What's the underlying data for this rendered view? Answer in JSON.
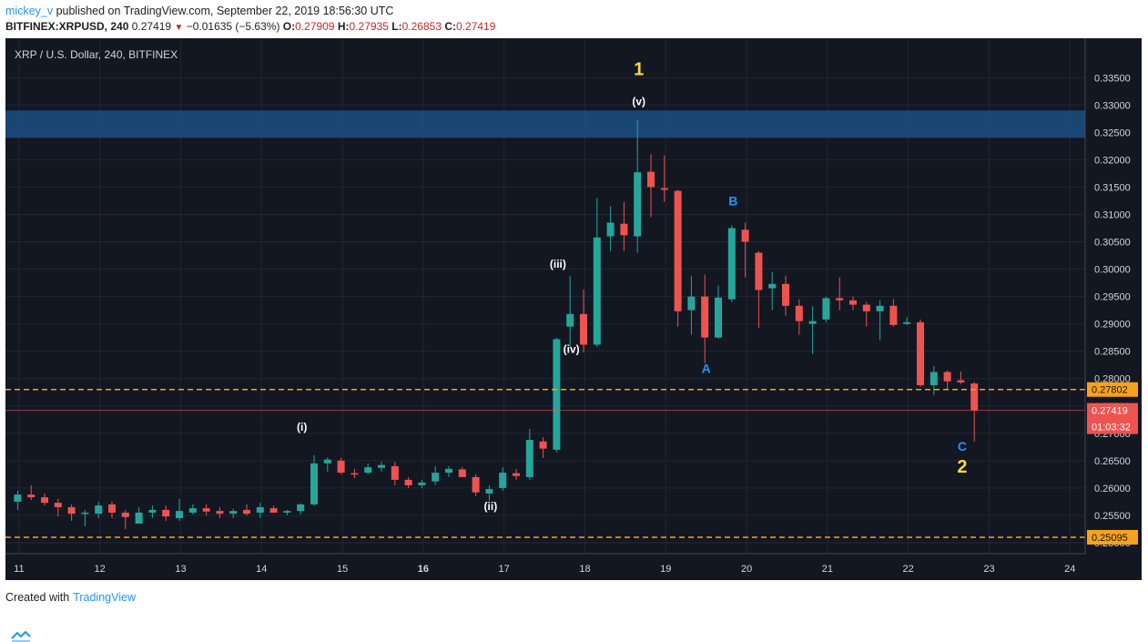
{
  "header": {
    "user": "mickey_v",
    "published": " published on TradingView.com, September 22, 2019 18:56:30 UTC",
    "symbol_line": "BITFINEX:XRPUSD, 240",
    "last": "0.27419",
    "change": "−0.01635 (−5.63%)",
    "o_label": "O:",
    "o_value": "0.27909",
    "h_label": "H:",
    "h_value": "0.27935",
    "l_label": "L:",
    "l_value": "0.26853",
    "c_label": "C:",
    "c_value": "0.27419"
  },
  "footer": {
    "created": "Created with",
    "brand": "TradingView"
  },
  "colors": {
    "bg": "#131722",
    "up": "#26a69a",
    "down": "#ef5350",
    "grid": "#232632",
    "text": "#d1d4dc",
    "dash": "#f7a21b",
    "zone": "#1c4f82",
    "wave_yellow": "#ffd740",
    "wave_blue": "#2196f3",
    "white": "#ffffff"
  },
  "chart_data": {
    "type": "candlestick",
    "title": "XRP / U.S. Dollar, 240, BITFINEX",
    "ylim": [
      0.248,
      0.3422
    ],
    "y_ticks": [
      "0.33500",
      "0.33000",
      "0.32500",
      "0.32000",
      "0.31500",
      "0.31000",
      "0.30500",
      "0.30000",
      "0.29500",
      "0.29000",
      "0.28500",
      "0.28000",
      "0.27500",
      "0.27000",
      "0.26500",
      "0.26000",
      "0.25500",
      "0.25000"
    ],
    "x_ticks": [
      {
        "label": "11",
        "t": 0.6,
        "bold": false
      },
      {
        "label": "12",
        "t": 6.6,
        "bold": false
      },
      {
        "label": "13",
        "t": 12.6,
        "bold": false
      },
      {
        "label": "14",
        "t": 18.6,
        "bold": false
      },
      {
        "label": "15",
        "t": 24.6,
        "bold": false
      },
      {
        "label": "16",
        "t": 30.6,
        "bold": true
      },
      {
        "label": "17",
        "t": 36.6,
        "bold": false
      },
      {
        "label": "18",
        "t": 42.6,
        "bold": false
      },
      {
        "label": "19",
        "t": 48.6,
        "bold": false
      },
      {
        "label": "20",
        "t": 54.6,
        "bold": false
      },
      {
        "label": "21",
        "t": 60.6,
        "bold": false
      },
      {
        "label": "22",
        "t": 66.6,
        "bold": false
      },
      {
        "label": "23",
        "t": 72.6,
        "bold": false
      },
      {
        "label": "24",
        "t": 78.6,
        "bold": false
      }
    ],
    "candles": [
      {
        "o": 0.2575,
        "h": 0.2595,
        "l": 0.256,
        "c": 0.2588
      },
      {
        "o": 0.2588,
        "h": 0.2605,
        "l": 0.2578,
        "c": 0.2583
      },
      {
        "o": 0.2583,
        "h": 0.259,
        "l": 0.2568,
        "c": 0.2573
      },
      {
        "o": 0.2573,
        "h": 0.258,
        "l": 0.2548,
        "c": 0.2565
      },
      {
        "o": 0.2565,
        "h": 0.257,
        "l": 0.254,
        "c": 0.2553
      },
      {
        "o": 0.2553,
        "h": 0.256,
        "l": 0.253,
        "c": 0.2555
      },
      {
        "o": 0.2553,
        "h": 0.2575,
        "l": 0.2545,
        "c": 0.2568
      },
      {
        "o": 0.257,
        "h": 0.2575,
        "l": 0.2545,
        "c": 0.2555
      },
      {
        "o": 0.2555,
        "h": 0.256,
        "l": 0.2525,
        "c": 0.2547
      },
      {
        "o": 0.2535,
        "h": 0.2565,
        "l": 0.2535,
        "c": 0.2555
      },
      {
        "o": 0.2555,
        "h": 0.2568,
        "l": 0.2545,
        "c": 0.256
      },
      {
        "o": 0.256,
        "h": 0.2568,
        "l": 0.254,
        "c": 0.2548
      },
      {
        "o": 0.2545,
        "h": 0.258,
        "l": 0.254,
        "c": 0.2558
      },
      {
        "o": 0.2555,
        "h": 0.257,
        "l": 0.2552,
        "c": 0.2563
      },
      {
        "o": 0.2563,
        "h": 0.257,
        "l": 0.255,
        "c": 0.2557
      },
      {
        "o": 0.2558,
        "h": 0.2565,
        "l": 0.2545,
        "c": 0.2553
      },
      {
        "o": 0.2553,
        "h": 0.2562,
        "l": 0.2545,
        "c": 0.2558
      },
      {
        "o": 0.256,
        "h": 0.257,
        "l": 0.255,
        "c": 0.2553
      },
      {
        "o": 0.2555,
        "h": 0.2573,
        "l": 0.2545,
        "c": 0.2565
      },
      {
        "o": 0.2563,
        "h": 0.2568,
        "l": 0.2555,
        "c": 0.2555
      },
      {
        "o": 0.2555,
        "h": 0.256,
        "l": 0.255,
        "c": 0.2558
      },
      {
        "o": 0.2558,
        "h": 0.2572,
        "l": 0.2552,
        "c": 0.257
      },
      {
        "o": 0.257,
        "h": 0.266,
        "l": 0.2568,
        "c": 0.2645
      },
      {
        "o": 0.2645,
        "h": 0.2656,
        "l": 0.263,
        "c": 0.2652
      },
      {
        "o": 0.265,
        "h": 0.2655,
        "l": 0.2625,
        "c": 0.2628
      },
      {
        "o": 0.2627,
        "h": 0.2635,
        "l": 0.2618,
        "c": 0.2625
      },
      {
        "o": 0.2628,
        "h": 0.2645,
        "l": 0.2625,
        "c": 0.2638
      },
      {
        "o": 0.2637,
        "h": 0.2648,
        "l": 0.263,
        "c": 0.2642
      },
      {
        "o": 0.264,
        "h": 0.2648,
        "l": 0.2605,
        "c": 0.2615
      },
      {
        "o": 0.2615,
        "h": 0.262,
        "l": 0.26,
        "c": 0.2605
      },
      {
        "o": 0.2605,
        "h": 0.2615,
        "l": 0.26,
        "c": 0.261
      },
      {
        "o": 0.2612,
        "h": 0.264,
        "l": 0.2605,
        "c": 0.2628
      },
      {
        "o": 0.2628,
        "h": 0.264,
        "l": 0.262,
        "c": 0.2635
      },
      {
        "o": 0.2634,
        "h": 0.2638,
        "l": 0.262,
        "c": 0.262
      },
      {
        "o": 0.262,
        "h": 0.2625,
        "l": 0.2585,
        "c": 0.2592
      },
      {
        "o": 0.259,
        "h": 0.2605,
        "l": 0.2577,
        "c": 0.2598
      },
      {
        "o": 0.26,
        "h": 0.2638,
        "l": 0.2595,
        "c": 0.2628
      },
      {
        "o": 0.2627,
        "h": 0.2635,
        "l": 0.2615,
        "c": 0.2622
      },
      {
        "o": 0.262,
        "h": 0.2708,
        "l": 0.2615,
        "c": 0.2688
      },
      {
        "o": 0.2685,
        "h": 0.2693,
        "l": 0.2655,
        "c": 0.2672
      },
      {
        "o": 0.267,
        "h": 0.2875,
        "l": 0.2665,
        "c": 0.2872
      },
      {
        "o": 0.2895,
        "h": 0.2987,
        "l": 0.2858,
        "c": 0.2918
      },
      {
        "o": 0.2918,
        "h": 0.2963,
        "l": 0.2848,
        "c": 0.2862
      },
      {
        "o": 0.2862,
        "h": 0.313,
        "l": 0.2858,
        "c": 0.3058
      },
      {
        "o": 0.306,
        "h": 0.3115,
        "l": 0.3033,
        "c": 0.3085
      },
      {
        "o": 0.3083,
        "h": 0.3123,
        "l": 0.3033,
        "c": 0.3062
      },
      {
        "o": 0.306,
        "h": 0.3272,
        "l": 0.303,
        "c": 0.3177
      },
      {
        "o": 0.3178,
        "h": 0.321,
        "l": 0.3095,
        "c": 0.315
      },
      {
        "o": 0.3148,
        "h": 0.3208,
        "l": 0.3123,
        "c": 0.3145
      },
      {
        "o": 0.3143,
        "h": 0.3145,
        "l": 0.2895,
        "c": 0.2923
      },
      {
        "o": 0.2925,
        "h": 0.2988,
        "l": 0.288,
        "c": 0.295
      },
      {
        "o": 0.295,
        "h": 0.299,
        "l": 0.2828,
        "c": 0.2875
      },
      {
        "o": 0.2875,
        "h": 0.297,
        "l": 0.2873,
        "c": 0.2948
      },
      {
        "o": 0.2945,
        "h": 0.308,
        "l": 0.294,
        "c": 0.3075
      },
      {
        "o": 0.3072,
        "h": 0.3085,
        "l": 0.2985,
        "c": 0.305
      },
      {
        "o": 0.303,
        "h": 0.3033,
        "l": 0.2893,
        "c": 0.2962
      },
      {
        "o": 0.2965,
        "h": 0.2995,
        "l": 0.2925,
        "c": 0.2973
      },
      {
        "o": 0.2973,
        "h": 0.2988,
        "l": 0.2915,
        "c": 0.2933
      },
      {
        "o": 0.2933,
        "h": 0.2945,
        "l": 0.288,
        "c": 0.2905
      },
      {
        "o": 0.29,
        "h": 0.2932,
        "l": 0.2845,
        "c": 0.2905
      },
      {
        "o": 0.2908,
        "h": 0.295,
        "l": 0.2903,
        "c": 0.2947
      },
      {
        "o": 0.2947,
        "h": 0.2985,
        "l": 0.2925,
        "c": 0.2943
      },
      {
        "o": 0.2943,
        "h": 0.295,
        "l": 0.2925,
        "c": 0.2935
      },
      {
        "o": 0.2935,
        "h": 0.294,
        "l": 0.2895,
        "c": 0.2923
      },
      {
        "o": 0.2923,
        "h": 0.2943,
        "l": 0.287,
        "c": 0.2933
      },
      {
        "o": 0.2933,
        "h": 0.2945,
        "l": 0.2895,
        "c": 0.2898
      },
      {
        "o": 0.29,
        "h": 0.2912,
        "l": 0.2898,
        "c": 0.2903
      },
      {
        "o": 0.2903,
        "h": 0.2908,
        "l": 0.2785,
        "c": 0.2788
      },
      {
        "o": 0.2788,
        "h": 0.2823,
        "l": 0.277,
        "c": 0.2812
      },
      {
        "o": 0.2812,
        "h": 0.2815,
        "l": 0.278,
        "c": 0.2795
      },
      {
        "o": 0.2797,
        "h": 0.2813,
        "l": 0.279,
        "c": 0.2793
      },
      {
        "o": 0.2791,
        "h": 0.2794,
        "l": 0.2685,
        "c": 0.2742
      }
    ],
    "zone": {
      "from": 0.324,
      "to": 0.329
    },
    "h_lines": [
      {
        "value": 0.278,
        "label": "0.27802",
        "style": "dashed"
      },
      {
        "value": 0.251,
        "label": "0.25095",
        "style": "dashed"
      }
    ],
    "last_price": {
      "value": 0.27419,
      "label": "0.27419",
      "countdown": "01:03:32"
    },
    "annotations": [
      {
        "text": "1",
        "t": 46.6,
        "y": 0.3355,
        "color": "yellow",
        "size": "big"
      },
      {
        "text": "(v)",
        "t": 46.6,
        "y": 0.33,
        "color": "white",
        "size": "small"
      },
      {
        "text": "(iii)",
        "t": 40.6,
        "y": 0.3003,
        "color": "white",
        "size": "small"
      },
      {
        "text": "(iv)",
        "t": 41.6,
        "y": 0.2847,
        "color": "white",
        "size": "small"
      },
      {
        "text": "(i)",
        "t": 21.6,
        "y": 0.2705,
        "color": "white",
        "size": "small"
      },
      {
        "text": "(ii)",
        "t": 35.6,
        "y": 0.256,
        "color": "white",
        "size": "small"
      },
      {
        "text": "A",
        "t": 51.6,
        "y": 0.281,
        "color": "blue",
        "size": "mid"
      },
      {
        "text": "B",
        "t": 53.6,
        "y": 0.3117,
        "color": "blue",
        "size": "mid"
      },
      {
        "text": "C",
        "t": 70.6,
        "y": 0.2668,
        "color": "blue",
        "size": "mid"
      },
      {
        "text": "2",
        "t": 70.6,
        "y": 0.2628,
        "color": "yellow",
        "size": "big"
      }
    ]
  }
}
